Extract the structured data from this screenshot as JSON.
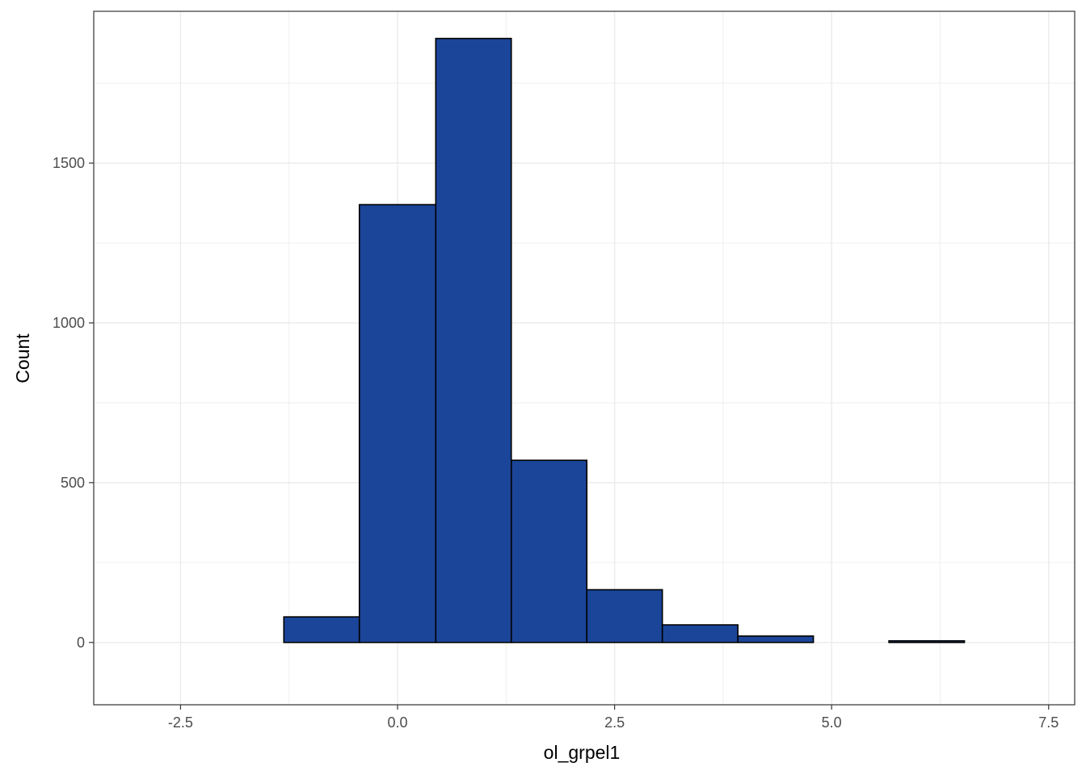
{
  "chart_data": {
    "type": "histogram",
    "title": "",
    "xlabel": "ol_grpel1",
    "ylabel": "Count",
    "xlim": [
      -3.5,
      7.8
    ],
    "ylim": [
      -195,
      1975
    ],
    "x_ticks": [
      -2.5,
      0.0,
      2.5,
      5.0,
      7.5
    ],
    "x_tick_labels": [
      "-2.5",
      "0.0",
      "2.5",
      "5.0",
      "7.5"
    ],
    "y_ticks": [
      0,
      500,
      1000,
      1500
    ],
    "y_tick_labels": [
      "0",
      "500",
      "1000",
      "1500"
    ],
    "grid": true,
    "bins": [
      {
        "x0": -3.05,
        "x1": -2.18,
        "count": 0
      },
      {
        "x0": -2.18,
        "x1": -1.31,
        "count": 0
      },
      {
        "x0": -1.31,
        "x1": -0.44,
        "count": 80
      },
      {
        "x0": -0.44,
        "x1": 0.44,
        "count": 1370
      },
      {
        "x0": 0.44,
        "x1": 1.31,
        "count": 1890
      },
      {
        "x0": 1.31,
        "x1": 2.18,
        "count": 570
      },
      {
        "x0": 2.18,
        "x1": 3.05,
        "count": 165
      },
      {
        "x0": 3.05,
        "x1": 3.92,
        "count": 55
      },
      {
        "x0": 3.92,
        "x1": 4.79,
        "count": 20
      },
      {
        "x0": 4.79,
        "x1": 5.66,
        "count": 0
      },
      {
        "x0": 5.66,
        "x1": 6.53,
        "count": 5
      },
      {
        "x0": 6.53,
        "x1": 7.4,
        "count": 0
      }
    ],
    "colors": {
      "fill": "#1a4599",
      "outline": "#000000",
      "grid": "#ebebeb",
      "panel_border": "#333333"
    }
  }
}
